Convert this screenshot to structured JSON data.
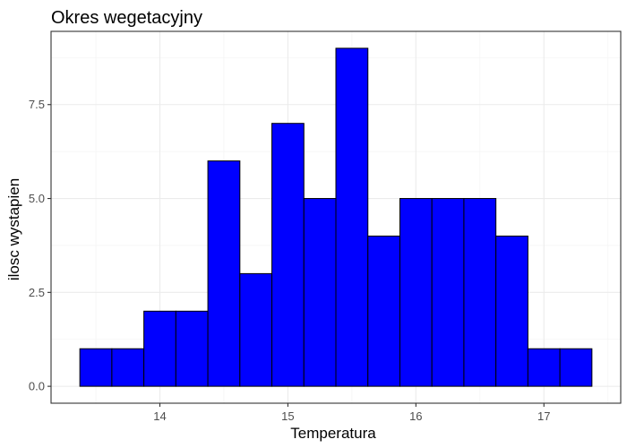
{
  "chart_data": {
    "type": "bar",
    "title": "Okres wegetacyjny",
    "xlabel": "Temperatura",
    "ylabel": "ilosc wystapien",
    "bin_width": 0.25,
    "x_tick_values": [
      14,
      15,
      16,
      17
    ],
    "x_tick_labels": [
      "14",
      "15",
      "16",
      "17"
    ],
    "y_tick_values": [
      0,
      2.5,
      5,
      7.5
    ],
    "y_tick_labels": [
      "0.0",
      "2.5",
      "5.0",
      "7.5"
    ],
    "xlim": [
      13.15,
      17.6
    ],
    "ylim": [
      -0.45,
      9.45
    ],
    "bins": [
      {
        "x": 13.5,
        "count": 1
      },
      {
        "x": 13.75,
        "count": 1
      },
      {
        "x": 14.0,
        "count": 2
      },
      {
        "x": 14.25,
        "count": 2
      },
      {
        "x": 14.5,
        "count": 6
      },
      {
        "x": 14.75,
        "count": 3
      },
      {
        "x": 15.0,
        "count": 7
      },
      {
        "x": 15.25,
        "count": 5
      },
      {
        "x": 15.5,
        "count": 9
      },
      {
        "x": 15.75,
        "count": 4
      },
      {
        "x": 16.0,
        "count": 5
      },
      {
        "x": 16.25,
        "count": 5
      },
      {
        "x": 16.5,
        "count": 5
      },
      {
        "x": 16.75,
        "count": 4
      },
      {
        "x": 17.0,
        "count": 1
      },
      {
        "x": 17.25,
        "count": 1
      }
    ],
    "grid": true,
    "bar_fill": "#0000ff",
    "bar_stroke": "#000000",
    "panel_border": "#333333",
    "grid_major": "#ebebeb",
    "grid_minor": "#f5f5f5"
  }
}
